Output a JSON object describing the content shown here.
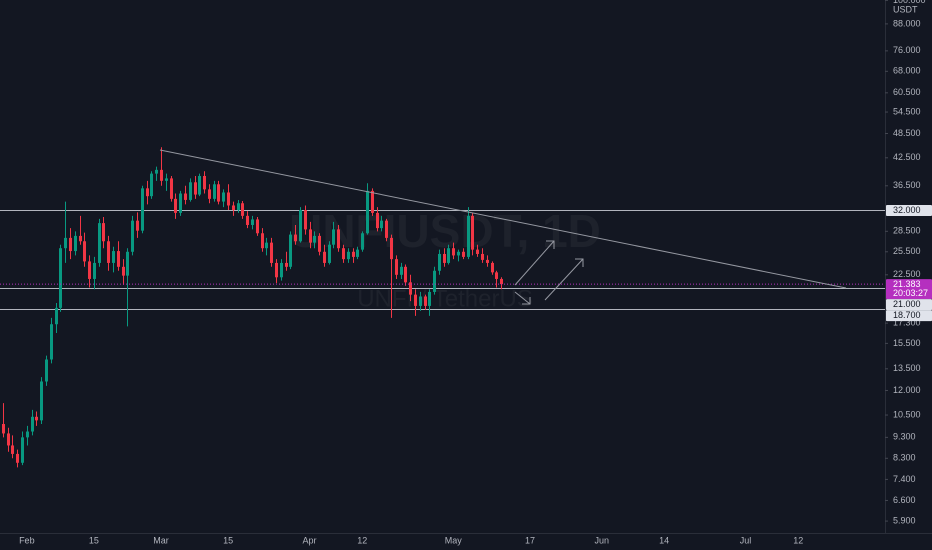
{
  "chart_data": {
    "type": "candlestick",
    "log_scale": true,
    "grid": false,
    "watermark": "UNFIUSDT, 1D",
    "watermark_subtitle": "UNFI / TetherUS",
    "y_unit": "USDT",
    "countdown": "20:03:27",
    "up_color": "#089981",
    "down_color": "#f23645",
    "last_price_color": "#b52fbf",
    "xlim": [
      -0.6,
      184.1
    ],
    "ylim": [
      5.53,
      100.2
    ],
    "x": [
      "Jan 27",
      "Jan 28",
      "Jan 29",
      "Jan 30",
      "Jan 31",
      "Feb 1",
      "Feb 2",
      "Feb 3",
      "Feb 4",
      "Feb 5",
      "Feb 6",
      "Feb 7",
      "Feb 8",
      "Feb 9",
      "Feb 10",
      "Feb 11",
      "Feb 12",
      "Feb 13",
      "Feb 14",
      "Feb 15",
      "Feb 16",
      "Feb 17",
      "Feb 18",
      "Feb 19",
      "Feb 20",
      "Feb 21",
      "Feb 22",
      "Feb 23",
      "Feb 24",
      "Feb 25",
      "Feb 26",
      "Feb 27",
      "Feb 28",
      "Mar 1",
      "Mar 2",
      "Mar 3",
      "Mar 4",
      "Mar 5",
      "Mar 6",
      "Mar 7",
      "Mar 8",
      "Mar 9",
      "Mar 10",
      "Mar 11",
      "Mar 12",
      "Mar 13",
      "Mar 14",
      "Mar 15",
      "Mar 16",
      "Mar 17",
      "Mar 18",
      "Mar 19",
      "Mar 20",
      "Mar 21",
      "Mar 22",
      "Mar 23",
      "Mar 24",
      "Mar 25",
      "Mar 26",
      "Mar 27",
      "Mar 28",
      "Mar 29",
      "Mar 30",
      "Mar 31",
      "Apr 1",
      "Apr 2",
      "Apr 3",
      "Apr 4",
      "Apr 5",
      "Apr 6",
      "Apr 7",
      "Apr 8",
      "Apr 9",
      "Apr 10",
      "Apr 11",
      "Apr 12",
      "Apr 13",
      "Apr 14",
      "Apr 15",
      "Apr 16",
      "Apr 17",
      "Apr 18",
      "Apr 19",
      "Apr 20",
      "Apr 21",
      "Apr 22",
      "Apr 23",
      "Apr 24",
      "Apr 25",
      "Apr 26",
      "Apr 27",
      "Apr 28",
      "Apr 29",
      "Apr 30",
      "May 1",
      "May 2",
      "May 3",
      "May 4",
      "May 5",
      "May 6",
      "May 7",
      "May 8",
      "May 9",
      "May 10",
      "May 11"
    ],
    "open": [
      10.0,
      9.5,
      8.9,
      8.5,
      8.1,
      9.3,
      9.6,
      10.4,
      10.2,
      12.6,
      14.2,
      17.2,
      18.8,
      26.0,
      27.5,
      25.6,
      27.8,
      27.0,
      24.2,
      22.0,
      24.0,
      29.8,
      27.0,
      24.0,
      25.6,
      23.5,
      22.4,
      25.5,
      30.2,
      28.6,
      36.0,
      34.5,
      39.0,
      39.8,
      37.5,
      38.0,
      34.0,
      31.5,
      35.0,
      33.8,
      37.2,
      34.8,
      38.5,
      35.8,
      34.0,
      36.8,
      33.5,
      35.2,
      32.8,
      32.0,
      33.2,
      31.0,
      29.5,
      30.4,
      28.2,
      26.0,
      26.8,
      24.0,
      22.2,
      24.0,
      23.5,
      28.0,
      27.0,
      32.0,
      28.8,
      26.8,
      27.8,
      25.5,
      24.0,
      26.5,
      28.8,
      26.0,
      24.5,
      25.5,
      24.8,
      25.8,
      28.2,
      35.5,
      31.5,
      29.0,
      30.2,
      27.5,
      24.5,
      22.5,
      23.5,
      21.6,
      20.2,
      19.0,
      20.0,
      19.0,
      20.5,
      23.0,
      25.2,
      24.0,
      26.0,
      25.0,
      25.5,
      24.8,
      31.0,
      25.8,
      25.2,
      24.4,
      24.0,
      22.8,
      22.0
    ],
    "high": [
      11.2,
      9.8,
      9.4,
      8.7,
      9.6,
      9.9,
      10.8,
      10.7,
      12.9,
      14.5,
      17.8,
      19.3,
      26.5,
      33.5,
      29.0,
      28.5,
      31.0,
      28.3,
      25.0,
      24.8,
      30.5,
      30.8,
      27.8,
      26.2,
      27.0,
      24.5,
      26.0,
      31.0,
      31.6,
      36.5,
      37.5,
      39.5,
      40.5,
      45.0,
      39.0,
      38.5,
      35.0,
      35.5,
      36.5,
      38.0,
      38.5,
      39.0,
      39.5,
      36.8,
      37.5,
      37.5,
      35.8,
      36.8,
      33.5,
      33.8,
      33.6,
      31.8,
      31.0,
      30.8,
      29.0,
      27.5,
      27.5,
      24.5,
      24.5,
      25.5,
      28.5,
      29.5,
      32.5,
      32.8,
      30.0,
      28.5,
      28.2,
      26.5,
      27.0,
      30.0,
      29.5,
      26.5,
      26.0,
      26.0,
      26.2,
      28.5,
      37.0,
      36.0,
      32.5,
      31.0,
      30.5,
      28.0,
      25.0,
      24.0,
      23.8,
      22.5,
      20.8,
      20.5,
      20.2,
      20.8,
      23.5,
      25.8,
      26.0,
      26.5,
      26.8,
      25.8,
      26.0,
      32.5,
      31.5,
      26.5,
      26.0,
      25.0,
      24.2,
      23.0,
      22.2
    ],
    "low": [
      9.3,
      8.6,
      8.3,
      7.9,
      8.0,
      8.9,
      9.4,
      9.9,
      10.0,
      12.3,
      13.9,
      16.4,
      18.4,
      24.0,
      24.5,
      25.0,
      26.5,
      23.5,
      21.0,
      20.8,
      23.5,
      26.0,
      23.0,
      22.8,
      23.0,
      21.3,
      17.0,
      25.0,
      27.5,
      28.2,
      33.0,
      34.0,
      37.5,
      36.5,
      35.5,
      33.5,
      30.5,
      31.0,
      33.0,
      33.5,
      34.0,
      34.5,
      35.0,
      33.2,
      33.5,
      33.0,
      32.5,
      32.0,
      31.0,
      31.5,
      30.5,
      29.0,
      28.8,
      27.8,
      25.5,
      25.0,
      23.5,
      21.5,
      21.8,
      23.0,
      23.2,
      26.5,
      26.8,
      28.0,
      26.0,
      26.0,
      25.0,
      23.5,
      23.8,
      26.0,
      25.5,
      24.0,
      24.0,
      24.0,
      24.5,
      25.5,
      28.0,
      31.0,
      28.5,
      28.5,
      27.0,
      17.8,
      22.0,
      22.0,
      21.2,
      19.5,
      18.0,
      18.5,
      18.6,
      18.0,
      20.2,
      22.5,
      23.5,
      23.8,
      24.5,
      24.2,
      24.5,
      24.5,
      25.0,
      24.8,
      24.0,
      23.5,
      22.5,
      21.0,
      20.8
    ],
    "close": [
      9.5,
      8.9,
      8.5,
      8.1,
      9.3,
      9.6,
      10.4,
      10.2,
      12.6,
      14.2,
      17.2,
      18.8,
      26.0,
      27.5,
      25.6,
      27.8,
      27.0,
      24.2,
      22.0,
      24.0,
      29.8,
      27.0,
      24.0,
      25.6,
      23.5,
      22.4,
      25.5,
      30.2,
      28.6,
      36.0,
      34.5,
      39.0,
      39.8,
      37.5,
      38.0,
      34.0,
      31.5,
      35.0,
      33.8,
      37.2,
      34.8,
      38.5,
      35.8,
      34.0,
      36.8,
      33.5,
      35.2,
      32.8,
      32.0,
      33.2,
      31.0,
      29.5,
      30.4,
      28.2,
      26.0,
      26.8,
      24.0,
      22.2,
      24.0,
      23.5,
      28.0,
      27.0,
      32.0,
      28.8,
      26.8,
      27.8,
      25.5,
      24.0,
      26.5,
      28.8,
      26.0,
      24.5,
      25.5,
      24.8,
      25.8,
      28.2,
      35.5,
      31.5,
      29.0,
      30.2,
      27.5,
      24.5,
      22.5,
      23.5,
      21.6,
      20.2,
      19.0,
      20.0,
      19.0,
      20.5,
      23.0,
      25.2,
      24.0,
      26.0,
      25.0,
      25.5,
      24.8,
      31.0,
      25.8,
      25.2,
      24.4,
      24.0,
      22.8,
      22.0,
      21.383
    ],
    "xticks": [
      {
        "value": 5,
        "label": "Feb"
      },
      {
        "value": 19,
        "label": "15"
      },
      {
        "value": 33,
        "label": "Mar"
      },
      {
        "value": 47,
        "label": "15"
      },
      {
        "value": 64,
        "label": "Apr"
      },
      {
        "value": 75,
        "label": "12"
      },
      {
        "value": 94,
        "label": "May"
      },
      {
        "value": 110,
        "label": "17"
      },
      {
        "value": 125,
        "label": "Jun"
      },
      {
        "value": 138,
        "label": "14"
      },
      {
        "value": 155,
        "label": "Jul"
      },
      {
        "value": 166,
        "label": "12"
      }
    ],
    "yticks": [
      {
        "value": 100,
        "label": "100.000"
      },
      {
        "value": 88,
        "label": "88.000"
      },
      {
        "value": 76,
        "label": "76.000"
      },
      {
        "value": 68,
        "label": "68.000"
      },
      {
        "value": 60.5,
        "label": "60.500"
      },
      {
        "value": 54.5,
        "label": "54.500"
      },
      {
        "value": 48.5,
        "label": "48.500"
      },
      {
        "value": 42.5,
        "label": "42.500"
      },
      {
        "value": 36.5,
        "label": "36.500"
      },
      {
        "value": 28.5,
        "label": "28.500"
      },
      {
        "value": 25.5,
        "label": "25.500"
      },
      {
        "value": 22.5,
        "label": "22.500"
      },
      {
        "value": 17.3,
        "label": "17.300"
      },
      {
        "value": 15.5,
        "label": "15.500"
      },
      {
        "value": 13.5,
        "label": "13.500"
      },
      {
        "value": 12,
        "label": "12.000"
      },
      {
        "value": 10.5,
        "label": "10.500"
      },
      {
        "value": 9.3,
        "label": "9.300"
      },
      {
        "value": 8.3,
        "label": "8.300"
      },
      {
        "value": 7.4,
        "label": "7.400"
      },
      {
        "value": 6.6,
        "label": "6.600"
      },
      {
        "value": 5.9,
        "label": "5.900"
      }
    ],
    "levels": [
      {
        "value": 32,
        "label": "32.000"
      },
      {
        "value": 21,
        "label": "21.000"
      },
      {
        "value": 18.7,
        "label": "18.700"
      }
    ]
  }
}
